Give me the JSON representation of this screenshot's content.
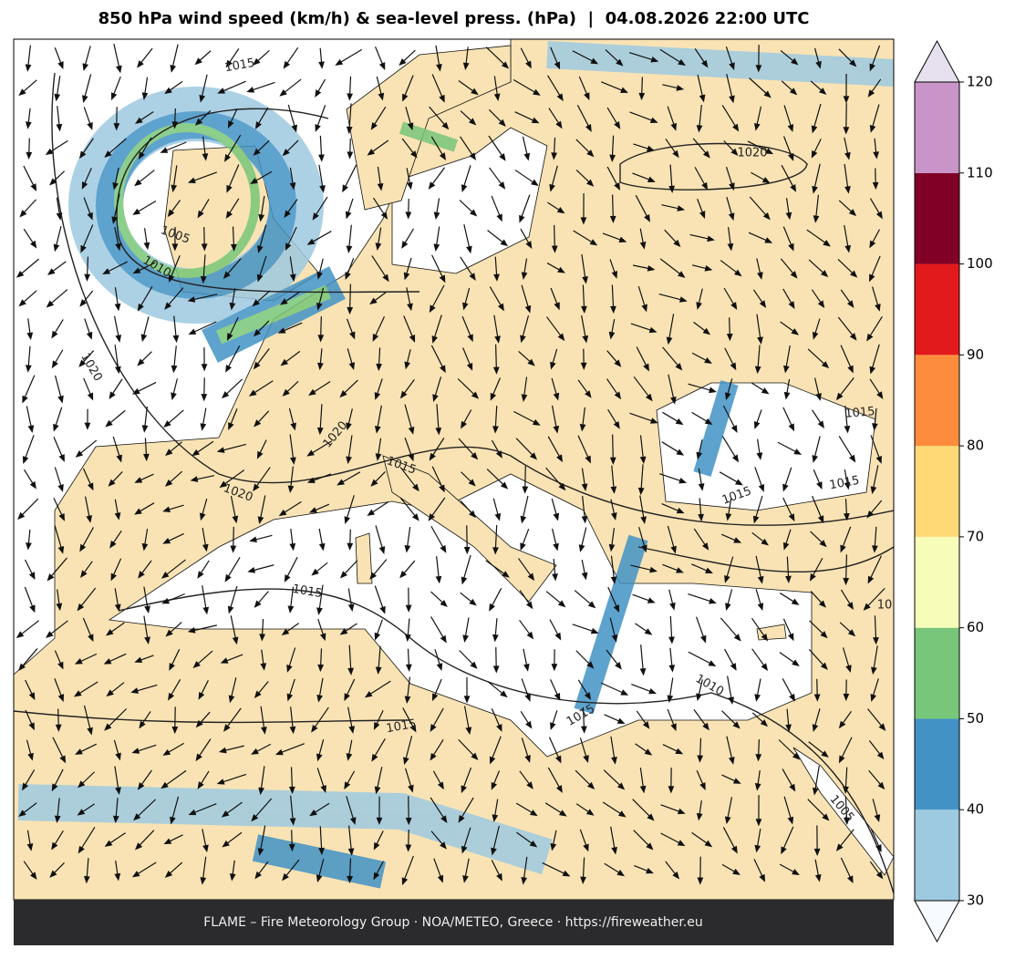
{
  "title": "850 hPa wind speed (km/h) & sea-level press. (hPa)  |  04.08.2026 22:00 UTC",
  "colorbar": {
    "levels": [
      30,
      40,
      50,
      60,
      70,
      80,
      90,
      100,
      110,
      120
    ],
    "colors": [
      "#9ecae1",
      "#4292c6",
      "#78c679",
      "#f7fcb9",
      "#fed976",
      "#fd8d3c",
      "#e31a1c",
      "#800026",
      "#c994c7"
    ],
    "under_color": "#f7fbff",
    "over_color": "#e7e1ef"
  },
  "contour_labels": [
    "1015",
    "1020",
    "1005",
    "1010",
    "1020",
    "1020",
    "1020",
    "1015",
    "1015",
    "1015",
    "1015",
    "1015",
    "1015",
    "1010",
    "1015",
    "1005",
    "10"
  ],
  "footer": "FLAME – Fire Meteorology Group · NOA/METEO, Greece · https://fireweather.eu"
}
